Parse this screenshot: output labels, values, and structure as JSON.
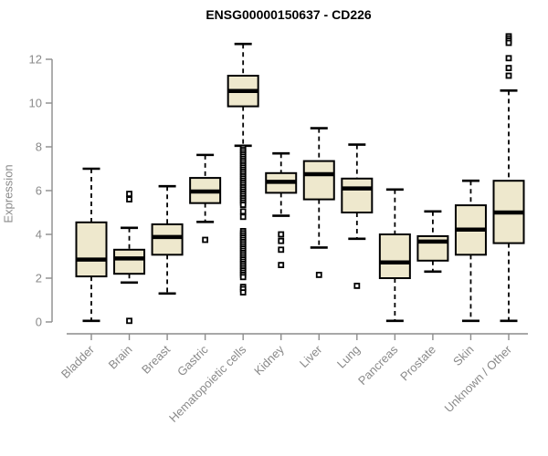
{
  "title": "ENSG00000150637 - CD226",
  "colors": {
    "background": "#ffffff",
    "box_fill": "#EEE8CD",
    "box_border": "#000000",
    "median": "#000000",
    "whisker": "#000000",
    "outlier": "#000000",
    "axis_line": "#8c8c8c",
    "axis_text": "#8a8a8a",
    "title_text": "#000000"
  },
  "chart_data": {
    "type": "boxplot",
    "title": "ENSG00000150637 - CD226",
    "xlabel": "",
    "ylabel": "Expression",
    "ylim": [
      0,
      13.5
    ],
    "yticks": [
      0,
      2,
      4,
      6,
      8,
      10,
      12
    ],
    "grid": false,
    "legend": "none",
    "x_tick_rotation_deg": 45,
    "categories": [
      "Bladder",
      "Brain",
      "Breast",
      "Gastric",
      "Hematopoietic cells",
      "Kidney",
      "Liver",
      "Lung",
      "Pancreas",
      "Prostate",
      "Skin",
      "Unknown / Other"
    ],
    "series": [
      {
        "name": "Bladder",
        "whisker_low": 0.05,
        "q1": 2.08,
        "median": 2.85,
        "q3": 4.55,
        "whisker_high": 7.0,
        "outliers": []
      },
      {
        "name": "Brain",
        "whisker_low": 1.8,
        "q1": 2.2,
        "median": 2.9,
        "q3": 3.3,
        "whisker_high": 4.3,
        "outliers": [
          5.85,
          5.6,
          0.05
        ]
      },
      {
        "name": "Breast",
        "whisker_low": 1.3,
        "q1": 3.07,
        "median": 3.88,
        "q3": 4.46,
        "whisker_high": 6.2,
        "outliers": []
      },
      {
        "name": "Gastric",
        "whisker_low": 4.57,
        "q1": 5.43,
        "median": 5.96,
        "q3": 6.58,
        "whisker_high": 7.63,
        "outliers": [
          3.75
        ]
      },
      {
        "name": "Hematopoietic cells",
        "whisker_low": 8.05,
        "q1": 9.85,
        "median": 10.55,
        "q3": 11.25,
        "whisker_high": 12.7,
        "outliers": [
          7.95,
          7.85,
          7.75,
          7.65,
          7.55,
          7.45,
          7.35,
          7.25,
          7.15,
          7.05,
          6.95,
          6.85,
          6.75,
          6.65,
          6.55,
          6.45,
          6.35,
          6.25,
          6.15,
          6.05,
          5.95,
          5.85,
          5.75,
          5.65,
          5.55,
          5.45,
          5.35,
          5.05,
          4.8,
          4.15,
          4.05,
          3.95,
          3.85,
          3.75,
          3.65,
          3.55,
          3.45,
          3.35,
          3.25,
          3.15,
          3.05,
          2.95,
          2.85,
          2.75,
          2.65,
          2.55,
          2.45,
          2.35,
          2.25,
          2.15,
          2.05,
          1.6,
          1.5,
          1.35
        ]
      },
      {
        "name": "Kidney",
        "whisker_low": 4.85,
        "q1": 5.9,
        "median": 6.4,
        "q3": 6.8,
        "whisker_high": 7.7,
        "outliers": [
          4.0,
          3.7,
          3.3,
          2.6
        ]
      },
      {
        "name": "Liver",
        "whisker_low": 3.4,
        "q1": 5.6,
        "median": 6.75,
        "q3": 7.35,
        "whisker_high": 8.85,
        "outliers": [
          2.15
        ]
      },
      {
        "name": "Lung",
        "whisker_low": 3.8,
        "q1": 5.0,
        "median": 6.1,
        "q3": 6.55,
        "whisker_high": 8.1,
        "outliers": [
          1.65
        ]
      },
      {
        "name": "Pancreas",
        "whisker_low": 0.05,
        "q1": 2.0,
        "median": 2.72,
        "q3": 4.0,
        "whisker_high": 6.05,
        "outliers": []
      },
      {
        "name": "Prostate",
        "whisker_low": 2.3,
        "q1": 2.8,
        "median": 3.67,
        "q3": 3.92,
        "whisker_high": 5.05,
        "outliers": []
      },
      {
        "name": "Skin",
        "whisker_low": 0.05,
        "q1": 3.07,
        "median": 4.22,
        "q3": 5.33,
        "whisker_high": 6.45,
        "outliers": []
      },
      {
        "name": "Unknown / Other",
        "whisker_low": 0.05,
        "q1": 3.6,
        "median": 5.0,
        "q3": 6.45,
        "whisker_high": 10.57,
        "outliers": [
          13.05,
          12.95,
          12.85,
          12.75,
          12.05,
          11.6,
          11.25
        ]
      }
    ]
  }
}
